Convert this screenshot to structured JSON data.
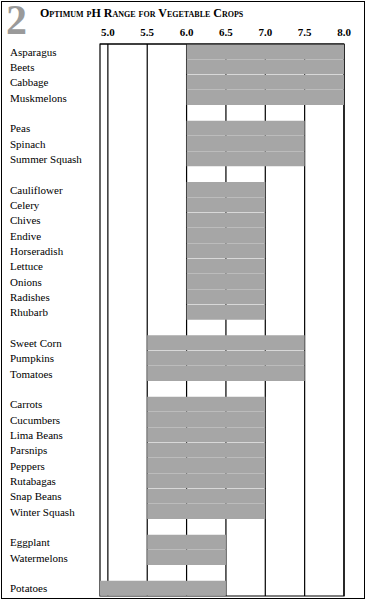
{
  "chart_data": {
    "type": "bar",
    "title": "Optimum pH Range for Vegetable Crops",
    "annotations": [
      "2"
    ],
    "orientation": "horizontal",
    "grid": true,
    "color": "#a6a6a6",
    "xlim": [
      4.9,
      8.0
    ],
    "xticks": [
      {
        "value": 5,
        "label": "5.0"
      },
      5.5,
      {
        "value": 6,
        "label": "6.0"
      },
      6.5,
      {
        "value": 7,
        "label": "7.0"
      },
      7.5,
      {
        "value": 8,
        "label": "8.0"
      }
    ],
    "categories": [
      "Asparagus",
      "Beets",
      "Cabbage",
      "Muskmelons",
      null,
      "Peas",
      "Spinach",
      "Summer Squash",
      null,
      "Cauliflower",
      "Celery",
      "Chives",
      "Endive",
      "Horseradish",
      "Lettuce",
      "Onions",
      "Radishes",
      "Rhubarb",
      null,
      "Sweet Corn",
      "Pumpkins",
      "Tomatoes",
      null,
      "Carrots",
      "Cucumbers",
      "Lima Beans",
      "Parsnips",
      "Peppers",
      "Rutabagas",
      "Snap Beans",
      "Winter Squash",
      null,
      "Eggplant",
      "Watermelons",
      null,
      "Potatoes"
    ],
    "values": [
      [
        6.0,
        8.0
      ],
      [
        6.0,
        8.0
      ],
      [
        6.0,
        8.0
      ],
      [
        6.0,
        8.0
      ],
      null,
      [
        6.0,
        7.5
      ],
      [
        6.0,
        7.5
      ],
      [
        6.0,
        7.5
      ],
      null,
      [
        6.0,
        7.0
      ],
      [
        6.0,
        7.0
      ],
      [
        6.0,
        7.0
      ],
      [
        6.0,
        7.0
      ],
      [
        6.0,
        7.0
      ],
      [
        6.0,
        7.0
      ],
      [
        6.0,
        7.0
      ],
      [
        6.0,
        7.0
      ],
      [
        6.0,
        7.0
      ],
      null,
      [
        5.5,
        7.5
      ],
      [
        5.5,
        7.5
      ],
      [
        5.5,
        7.5
      ],
      null,
      [
        5.5,
        7.0
      ],
      [
        5.5,
        7.0
      ],
      [
        5.5,
        7.0
      ],
      [
        5.5,
        7.0
      ],
      [
        5.5,
        7.0
      ],
      [
        5.5,
        7.0
      ],
      [
        5.5,
        7.0
      ],
      [
        5.5,
        7.0
      ],
      null,
      [
        5.5,
        6.5
      ],
      [
        5.5,
        6.5
      ],
      null,
      [
        4.9,
        6.5
      ]
    ]
  }
}
